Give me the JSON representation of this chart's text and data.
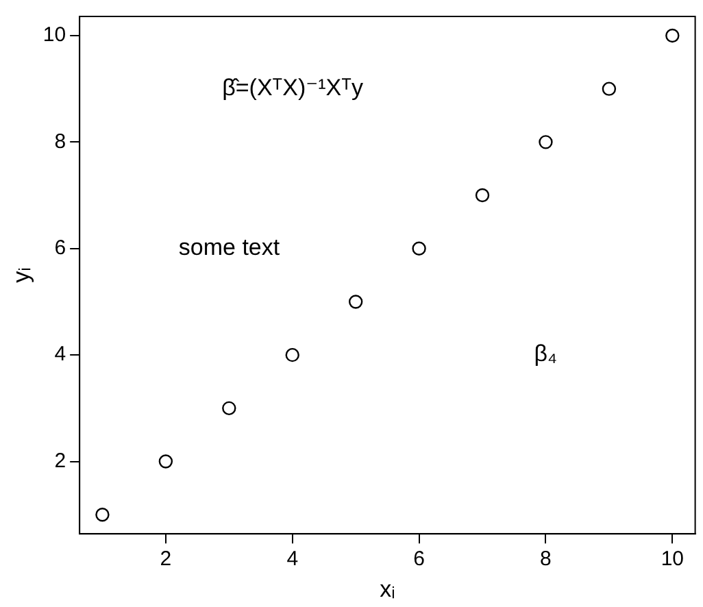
{
  "chart_data": {
    "type": "scatter",
    "xlabel": "xᵢ",
    "ylabel": "yᵢ",
    "x": [
      1,
      2,
      3,
      4,
      5,
      6,
      7,
      8,
      9,
      10
    ],
    "series": [
      {
        "color": "#000000",
        "values": [
          1,
          2,
          3,
          4,
          5,
          6,
          7,
          8,
          9,
          10
        ]
      }
    ],
    "xlim": [
      0.64,
      10.36
    ],
    "xticks": [
      2,
      4,
      6,
      8,
      10
    ],
    "ylim": [
      0.64,
      10.36
    ],
    "yticks": [
      2,
      4,
      6,
      8,
      10
    ],
    "grid": false,
    "legend": false,
    "marker": "circle",
    "annotations": [
      "β̂=(XᵀX)⁻¹Xᵀy",
      "some text",
      "β₄"
    ]
  }
}
